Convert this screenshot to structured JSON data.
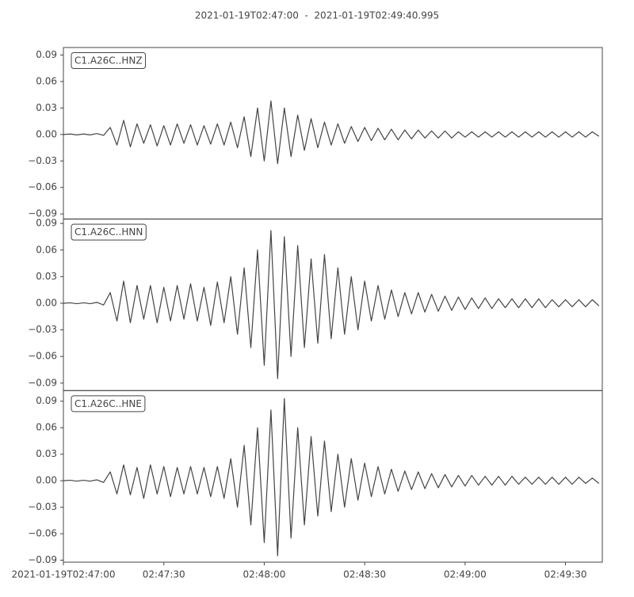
{
  "title": "2021-01-19T02:47:00  -  2021-01-19T02:49:40.995",
  "chart_data": [
    {
      "type": "line",
      "xlim": [
        0,
        160.995
      ],
      "ylim": [
        -0.0958,
        0.0985
      ],
      "yticks": [
        0.09,
        0.06,
        0.03,
        {
          "value": 0,
          "label": "0.00"
        },
        {
          "value": -0.03,
          "label": "−0.03"
        },
        {
          "value": -0.06,
          "label": "−0.06"
        },
        {
          "value": -0.09,
          "label": "−0.09"
        }
      ],
      "x": [
        0,
        2,
        4,
        6,
        8,
        10,
        12,
        14,
        16,
        18,
        20,
        22,
        24,
        26,
        28,
        30,
        32,
        34,
        36,
        38,
        40,
        42,
        44,
        46,
        48,
        50,
        52,
        54,
        56,
        58,
        60,
        62,
        64,
        66,
        68,
        70,
        72,
        74,
        76,
        78,
        80,
        82,
        84,
        86,
        88,
        90,
        92,
        94,
        96,
        98,
        100,
        102,
        104,
        106,
        108,
        110,
        112,
        114,
        116,
        118,
        120,
        122,
        124,
        126,
        128,
        130,
        132,
        134,
        136,
        138,
        140,
        142,
        144,
        146,
        148,
        150,
        152,
        154,
        156,
        158,
        160
      ],
      "series": [
        {
          "name": "C1.A26C..HNZ",
          "color": "#444444",
          "values": [
            0,
            0.0005,
            -0.0005,
            0.0005,
            -0.0005,
            0.001,
            -0.001,
            0.008,
            -0.012,
            0.016,
            -0.014,
            0.012,
            -0.01,
            0.011,
            -0.013,
            0.01,
            -0.012,
            0.012,
            -0.01,
            0.011,
            -0.012,
            0.01,
            -0.011,
            0.012,
            -0.012,
            0.014,
            -0.015,
            0.02,
            -0.025,
            0.03,
            -0.03,
            0.038,
            -0.033,
            0.03,
            -0.025,
            0.022,
            -0.018,
            0.018,
            -0.015,
            0.014,
            -0.012,
            0.012,
            -0.01,
            0.009,
            -0.008,
            0.008,
            -0.007,
            0.007,
            -0.006,
            0.006,
            -0.006,
            0.005,
            -0.005,
            0.005,
            -0.004,
            0.004,
            -0.004,
            0.004,
            -0.004,
            0.003,
            -0.003,
            0.003,
            -0.003,
            0.003,
            -0.003,
            0.003,
            -0.003,
            0.003,
            -0.003,
            0.003,
            -0.003,
            0.003,
            -0.003,
            0.003,
            -0.003,
            0.003,
            -0.003,
            0.003,
            -0.003,
            0.003,
            -0.002
          ]
        }
      ]
    },
    {
      "type": "line",
      "xlim": [
        0,
        160.995
      ],
      "ylim": [
        -0.0985,
        0.0949
      ],
      "yticks": [
        0.09,
        0.06,
        0.03,
        {
          "value": 0,
          "label": "0.00"
        },
        {
          "value": -0.03,
          "label": "−0.03"
        },
        {
          "value": -0.06,
          "label": "−0.06"
        },
        {
          "value": -0.09,
          "label": "−0.09"
        }
      ],
      "x": [
        0,
        2,
        4,
        6,
        8,
        10,
        12,
        14,
        16,
        18,
        20,
        22,
        24,
        26,
        28,
        30,
        32,
        34,
        36,
        38,
        40,
        42,
        44,
        46,
        48,
        50,
        52,
        54,
        56,
        58,
        60,
        62,
        64,
        66,
        68,
        70,
        72,
        74,
        76,
        78,
        80,
        82,
        84,
        86,
        88,
        90,
        92,
        94,
        96,
        98,
        100,
        102,
        104,
        106,
        108,
        110,
        112,
        114,
        116,
        118,
        120,
        122,
        124,
        126,
        128,
        130,
        132,
        134,
        136,
        138,
        140,
        142,
        144,
        146,
        148,
        150,
        152,
        154,
        156,
        158,
        160
      ],
      "series": [
        {
          "name": "C1.A26C..HNN",
          "color": "#444444",
          "values": [
            0,
            0.0005,
            -0.0005,
            0.0005,
            -0.0005,
            0.001,
            -0.002,
            0.012,
            -0.02,
            0.025,
            -0.022,
            0.02,
            -0.018,
            0.02,
            -0.022,
            0.018,
            -0.02,
            0.02,
            -0.018,
            0.022,
            -0.02,
            0.018,
            -0.025,
            0.024,
            -0.022,
            0.03,
            -0.035,
            0.04,
            -0.05,
            0.06,
            -0.07,
            0.082,
            -0.085,
            0.075,
            -0.06,
            0.065,
            -0.05,
            0.05,
            -0.045,
            0.055,
            -0.04,
            0.04,
            -0.035,
            0.03,
            -0.03,
            0.025,
            -0.02,
            0.02,
            -0.018,
            0.015,
            -0.015,
            0.012,
            -0.012,
            0.012,
            -0.01,
            0.01,
            -0.009,
            0.008,
            -0.008,
            0.007,
            -0.007,
            0.006,
            -0.006,
            0.006,
            -0.006,
            0.005,
            -0.005,
            0.005,
            -0.005,
            0.005,
            -0.005,
            0.005,
            -0.005,
            0.004,
            -0.004,
            0.004,
            -0.004,
            0.004,
            -0.004,
            0.004,
            -0.003
          ]
        }
      ]
    },
    {
      "type": "line",
      "xlim": [
        0,
        160.995
      ],
      "ylim": [
        -0.0922,
        0.102
      ],
      "yticks": [
        0.09,
        0.06,
        0.03,
        {
          "value": 0,
          "label": "0.00"
        },
        {
          "value": -0.03,
          "label": "−0.03"
        },
        {
          "value": -0.06,
          "label": "−0.06"
        },
        {
          "value": -0.09,
          "label": "−0.09"
        }
      ],
      "xticks": [
        {
          "value": 0,
          "label": "2021-01-19T02:47:00"
        },
        {
          "value": 30,
          "label": "02:47:30"
        },
        {
          "value": 60,
          "label": "02:48:00"
        },
        {
          "value": 90,
          "label": "02:48:30"
        },
        {
          "value": 120,
          "label": "02:49:00"
        },
        {
          "value": 150,
          "label": "02:49:30"
        }
      ],
      "x": [
        0,
        2,
        4,
        6,
        8,
        10,
        12,
        14,
        16,
        18,
        20,
        22,
        24,
        26,
        28,
        30,
        32,
        34,
        36,
        38,
        40,
        42,
        44,
        46,
        48,
        50,
        52,
        54,
        56,
        58,
        60,
        62,
        64,
        66,
        68,
        70,
        72,
        74,
        76,
        78,
        80,
        82,
        84,
        86,
        88,
        90,
        92,
        94,
        96,
        98,
        100,
        102,
        104,
        106,
        108,
        110,
        112,
        114,
        116,
        118,
        120,
        122,
        124,
        126,
        128,
        130,
        132,
        134,
        136,
        138,
        140,
        142,
        144,
        146,
        148,
        150,
        152,
        154,
        156,
        158,
        160
      ],
      "series": [
        {
          "name": "C1.A26C..HNE",
          "color": "#444444",
          "values": [
            0,
            0.0005,
            -0.0005,
            0.0005,
            -0.0005,
            0.001,
            -0.002,
            0.01,
            -0.015,
            0.018,
            -0.016,
            0.015,
            -0.02,
            0.018,
            -0.015,
            0.016,
            -0.018,
            0.015,
            -0.015,
            0.016,
            -0.015,
            0.015,
            -0.018,
            0.016,
            -0.02,
            0.025,
            -0.03,
            0.04,
            -0.05,
            0.06,
            -0.07,
            0.08,
            -0.085,
            0.093,
            -0.065,
            0.06,
            -0.05,
            0.05,
            -0.04,
            0.045,
            -0.035,
            0.03,
            -0.03,
            0.025,
            -0.022,
            0.02,
            -0.018,
            0.016,
            -0.015,
            0.013,
            -0.012,
            0.011,
            -0.01,
            0.01,
            -0.009,
            0.008,
            -0.008,
            0.007,
            -0.007,
            0.006,
            -0.006,
            0.006,
            -0.005,
            0.005,
            -0.005,
            0.005,
            -0.005,
            0.005,
            -0.004,
            0.004,
            -0.004,
            0.004,
            -0.004,
            0.004,
            -0.004,
            0.004,
            -0.004,
            0.004,
            -0.003,
            0.003,
            -0.003
          ]
        }
      ]
    }
  ]
}
